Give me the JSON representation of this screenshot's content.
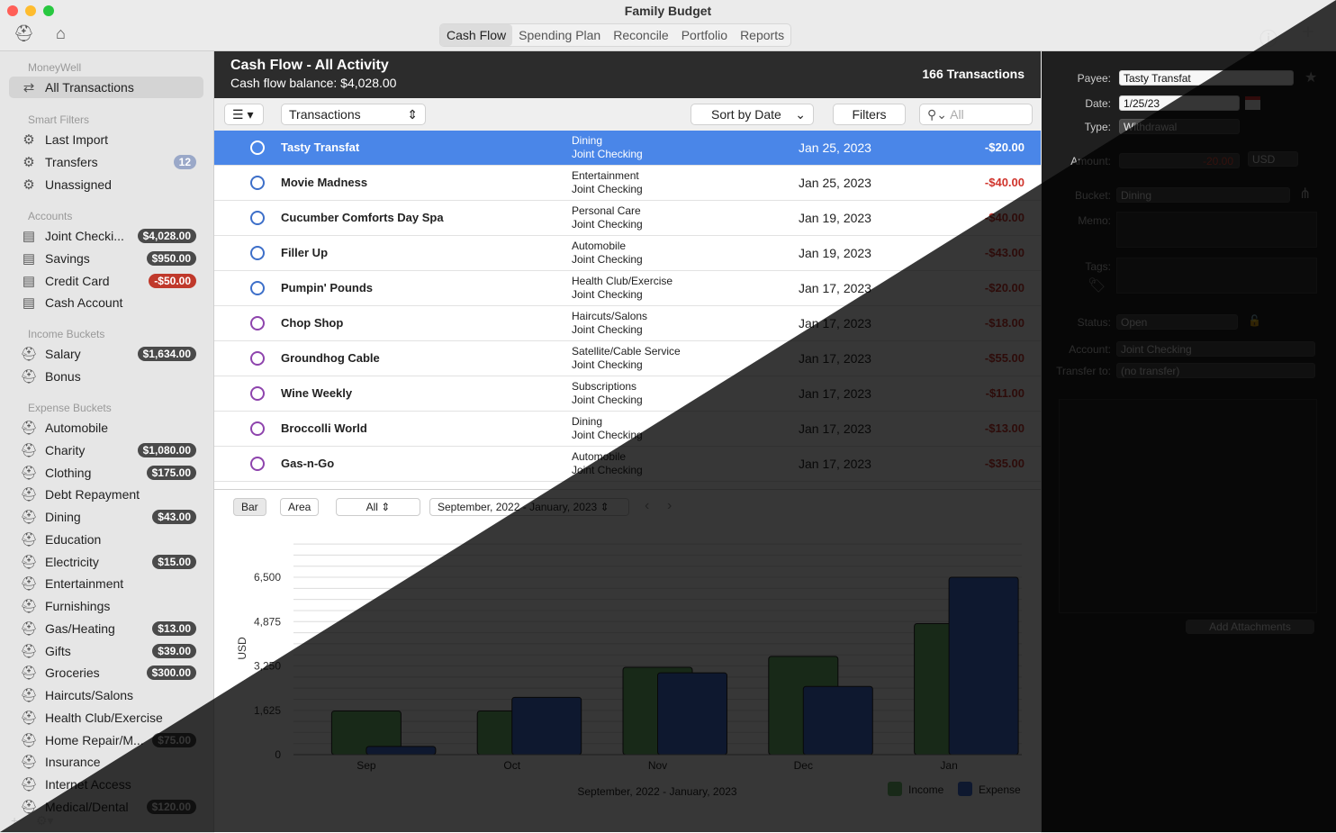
{
  "window": {
    "title": "Family Budget",
    "tabs": [
      "Cash Flow",
      "Spending Plan",
      "Reconcile",
      "Portfolio",
      "Reports"
    ],
    "active_tab": "Cash Flow"
  },
  "sidebar": {
    "moneywell_label": "MoneyWell",
    "all_transactions": "All Transactions",
    "smart_filters_label": "Smart Filters",
    "smart_filters": [
      {
        "label": "Last Import",
        "badge": ""
      },
      {
        "label": "Transfers",
        "badge": "12"
      },
      {
        "label": "Unassigned",
        "badge": ""
      }
    ],
    "accounts_label": "Accounts",
    "accounts": [
      {
        "label": "Joint Checki...",
        "badge": "$4,028.00"
      },
      {
        "label": "Savings",
        "badge": "$950.00"
      },
      {
        "label": "Credit Card",
        "badge": "-$50.00"
      },
      {
        "label": "Cash Account",
        "badge": ""
      }
    ],
    "income_label": "Income Buckets",
    "income": [
      {
        "label": "Salary",
        "badge": "$1,634.00"
      },
      {
        "label": "Bonus",
        "badge": ""
      }
    ],
    "expense_label": "Expense Buckets",
    "expense": [
      {
        "label": "Automobile",
        "badge": ""
      },
      {
        "label": "Charity",
        "badge": "$1,080.00"
      },
      {
        "label": "Clothing",
        "badge": "$175.00"
      },
      {
        "label": "Debt Repayment",
        "badge": ""
      },
      {
        "label": "Dining",
        "badge": "$43.00"
      },
      {
        "label": "Education",
        "badge": ""
      },
      {
        "label": "Electricity",
        "badge": "$15.00"
      },
      {
        "label": "Entertainment",
        "badge": ""
      },
      {
        "label": "Furnishings",
        "badge": ""
      },
      {
        "label": "Gas/Heating",
        "badge": "$13.00"
      },
      {
        "label": "Gifts",
        "badge": "$39.00"
      },
      {
        "label": "Groceries",
        "badge": "$300.00"
      },
      {
        "label": "Haircuts/Salons",
        "badge": ""
      },
      {
        "label": "Health Club/Exercise",
        "badge": ""
      },
      {
        "label": "Home Repair/M...",
        "badge": "$75.00"
      },
      {
        "label": "Insurance",
        "badge": ""
      },
      {
        "label": "Internet Access",
        "badge": ""
      },
      {
        "label": "Medical/Dental",
        "badge": "$120.00"
      }
    ]
  },
  "main": {
    "title": "Cash Flow - All Activity",
    "balance": "Cash flow balance: $4,028.00",
    "count": "166 Transactions",
    "toolbar": {
      "view": "Transactions",
      "sort": "Sort by Date",
      "filters": "Filters",
      "search_placeholder": "All"
    },
    "transactions": [
      {
        "payee": "Tasty Transfat",
        "category": "Dining",
        "account": "Joint Checking",
        "date": "Jan 25, 2023",
        "amount": "-$20.00",
        "status": "open"
      },
      {
        "payee": "Movie Madness",
        "category": "Entertainment",
        "account": "Joint Checking",
        "date": "Jan 25, 2023",
        "amount": "-$40.00",
        "status": "open"
      },
      {
        "payee": "Cucumber Comforts Day Spa",
        "category": "Personal Care",
        "account": "Joint Checking",
        "date": "Jan 19, 2023",
        "amount": "-$40.00",
        "status": "open"
      },
      {
        "payee": "Filler Up",
        "category": "Automobile",
        "account": "Joint Checking",
        "date": "Jan 19, 2023",
        "amount": "-$43.00",
        "status": "open"
      },
      {
        "payee": "Pumpin' Pounds",
        "category": "Health Club/Exercise",
        "account": "Joint Checking",
        "date": "Jan 17, 2023",
        "amount": "-$20.00",
        "status": "open"
      },
      {
        "payee": "Chop Shop",
        "category": "Haircuts/Salons",
        "account": "Joint Checking",
        "date": "Jan 17, 2023",
        "amount": "-$18.00",
        "status": "recurring"
      },
      {
        "payee": "Groundhog Cable",
        "category": "Satellite/Cable Service",
        "account": "Joint Checking",
        "date": "Jan 17, 2023",
        "amount": "-$55.00",
        "status": "recurring"
      },
      {
        "payee": "Wine Weekly",
        "category": "Subscriptions",
        "account": "Joint Checking",
        "date": "Jan 17, 2023",
        "amount": "-$11.00",
        "status": "recurring"
      },
      {
        "payee": "Broccolli World",
        "category": "Dining",
        "account": "Joint Checking",
        "date": "Jan 17, 2023",
        "amount": "-$13.00",
        "status": "recurring"
      },
      {
        "payee": "Gas-n-Go",
        "category": "Automobile",
        "account": "Joint Checking",
        "date": "Jan 17, 2023",
        "amount": "-$35.00",
        "status": "recurring"
      }
    ],
    "chart_controls": {
      "bar": "Bar",
      "area": "Area",
      "scope": "All",
      "range": "September, 2022 - January, 2023"
    }
  },
  "chart_data": {
    "type": "bar",
    "title": "",
    "xlabel": "September, 2022 - January, 2023",
    "ylabel": "USD",
    "categories": [
      "Sep",
      "Oct",
      "Nov",
      "Dec",
      "Jan"
    ],
    "y_ticks": [
      "0",
      "1,625",
      "3,250",
      "4,875",
      "6,500"
    ],
    "ylim": [
      0,
      6500
    ],
    "series": [
      {
        "name": "Income",
        "color": "#6dbb6d",
        "values": [
          1600,
          1600,
          3200,
          3600,
          4800
        ]
      },
      {
        "name": "Expense",
        "color": "#3f6fd8",
        "values": [
          300,
          2100,
          3000,
          2500,
          6500
        ]
      }
    ],
    "legend": "bottom-right"
  },
  "inspector": {
    "payee_label": "Payee:",
    "payee": "Tasty Transfat",
    "date_label": "Date:",
    "date": "1/25/23",
    "type_label": "Type:",
    "type": "Withdrawal",
    "amount_label": "Amount:",
    "amount": "-20.00",
    "currency": "USD",
    "bucket_label": "Bucket:",
    "bucket": "Dining",
    "memo_label": "Memo:",
    "tags_label": "Tags:",
    "status_label": "Status:",
    "status": "Open",
    "account_label": "Account:",
    "account": "Joint Checking",
    "transfer_label": "Transfer to:",
    "transfer": "(no transfer)",
    "attach_button": "Add Attachments"
  }
}
